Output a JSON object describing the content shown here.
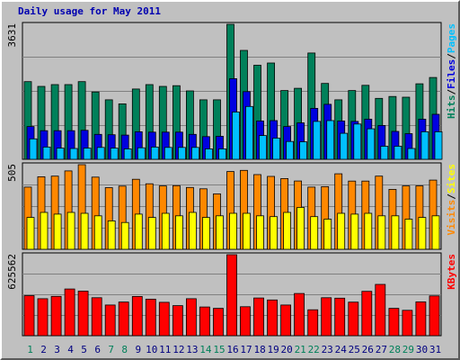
{
  "colors": {
    "background": "#c0c0c0",
    "plot": "#c0c0c0",
    "title": "#0000b0",
    "pages": "#00805a",
    "files": "#0000e0",
    "hits": "#00c0ff",
    "visits": "#ff8800",
    "sites": "#ffff00",
    "kbytes": "#ff0000",
    "weekend": "#00805a",
    "weekday": "#000080"
  },
  "chart_data": {
    "type": "bar",
    "title": "Daily usage for May 2011",
    "categories": [
      "1",
      "2",
      "3",
      "4",
      "5",
      "6",
      "7",
      "8",
      "9",
      "10",
      "11",
      "12",
      "13",
      "14",
      "15",
      "16",
      "17",
      "18",
      "19",
      "20",
      "21",
      "22",
      "23",
      "24",
      "25",
      "26",
      "27",
      "28",
      "29",
      "30",
      "31"
    ],
    "weekend_days": [
      "1",
      "7",
      "8",
      "14",
      "15",
      "21",
      "22",
      "28",
      "29"
    ],
    "panels": [
      {
        "name": "pages-files-hits",
        "max_label": "3631",
        "ymax": 3631,
        "legend": [
          {
            "text": "Hits",
            "color": "#00805a"
          },
          {
            "text": "Files",
            "color": "#0000e0"
          },
          {
            "text": "Pages",
            "color": "#00c0ff"
          }
        ],
        "separator": "/",
        "series": [
          {
            "name": "Hits",
            "color": "#00805a",
            "values": [
              2090,
              1960,
              2010,
              2010,
              2090,
              1810,
              1600,
              1490,
              1890,
              2010,
              1960,
              1980,
              1840,
              1600,
              1600,
              3630,
              2930,
              2530,
              2590,
              1850,
              1910,
              2860,
              2040,
              1600,
              1850,
              1990,
              1640,
              1690,
              1670,
              2030,
              2200
            ]
          },
          {
            "name": "Files",
            "color": "#0000e0",
            "values": [
              880,
              770,
              770,
              770,
              780,
              670,
              660,
              650,
              740,
              730,
              730,
              730,
              670,
              610,
              620,
              2170,
              1820,
              1030,
              1040,
              880,
              980,
              1370,
              1480,
              1030,
              1020,
              1080,
              910,
              750,
              690,
              1080,
              1210
            ]
          },
          {
            "name": "Pages",
            "color": "#00c0ff",
            "values": [
              550,
              330,
              300,
              290,
              300,
              320,
              300,
              280,
              310,
              330,
              320,
              320,
              320,
              280,
              280,
              1270,
              1420,
              640,
              570,
              480,
              470,
              1020,
              1040,
              700,
              950,
              820,
              350,
              350,
              290,
              740,
              740
            ]
          }
        ]
      },
      {
        "name": "visits-sites",
        "max_label": "505",
        "ymax": 505,
        "legend": [
          {
            "text": "Visits",
            "color": "#ff8800"
          },
          {
            "text": "Sites",
            "color": "#ffff00"
          }
        ],
        "separator": "/",
        "series": [
          {
            "name": "Visits",
            "color": "#ff8800",
            "values": [
              371,
              433,
              437,
              468,
              505,
              431,
              368,
              377,
              418,
              391,
              378,
              380,
              369,
              361,
              331,
              464,
              471,
              446,
              435,
              422,
              408,
              371,
              374,
              451,
              407,
              407,
              437,
              358,
              378,
              379,
              413
            ]
          },
          {
            "name": "Sites",
            "color": "#ffff00",
            "values": [
              190,
              220,
              210,
              220,
              215,
              200,
              170,
              160,
              210,
              190,
              215,
              200,
              220,
              190,
              200,
              215,
              215,
              200,
              195,
              220,
              250,
              195,
              180,
              215,
              210,
              215,
              200,
              200,
              180,
              190,
              200
            ]
          }
        ]
      },
      {
        "name": "kbytes",
        "max_label": "625562",
        "ymax": 625562,
        "legend": [
          {
            "text": "KBytes",
            "color": "#ff0000"
          }
        ],
        "separator": "",
        "series": [
          {
            "name": "KBytes",
            "color": "#ff0000",
            "values": [
              309000,
              286000,
              304000,
              361000,
              344000,
              293000,
              237000,
              260000,
              303000,
              282000,
              258000,
              232000,
              286000,
              222000,
              211000,
              625562,
              224000,
              291000,
              276000,
              237000,
              326000,
              200000,
              293000,
              290000,
              259000,
              343000,
              396000,
              211000,
              196000,
              261000,
              307000
            ]
          }
        ]
      }
    ]
  }
}
